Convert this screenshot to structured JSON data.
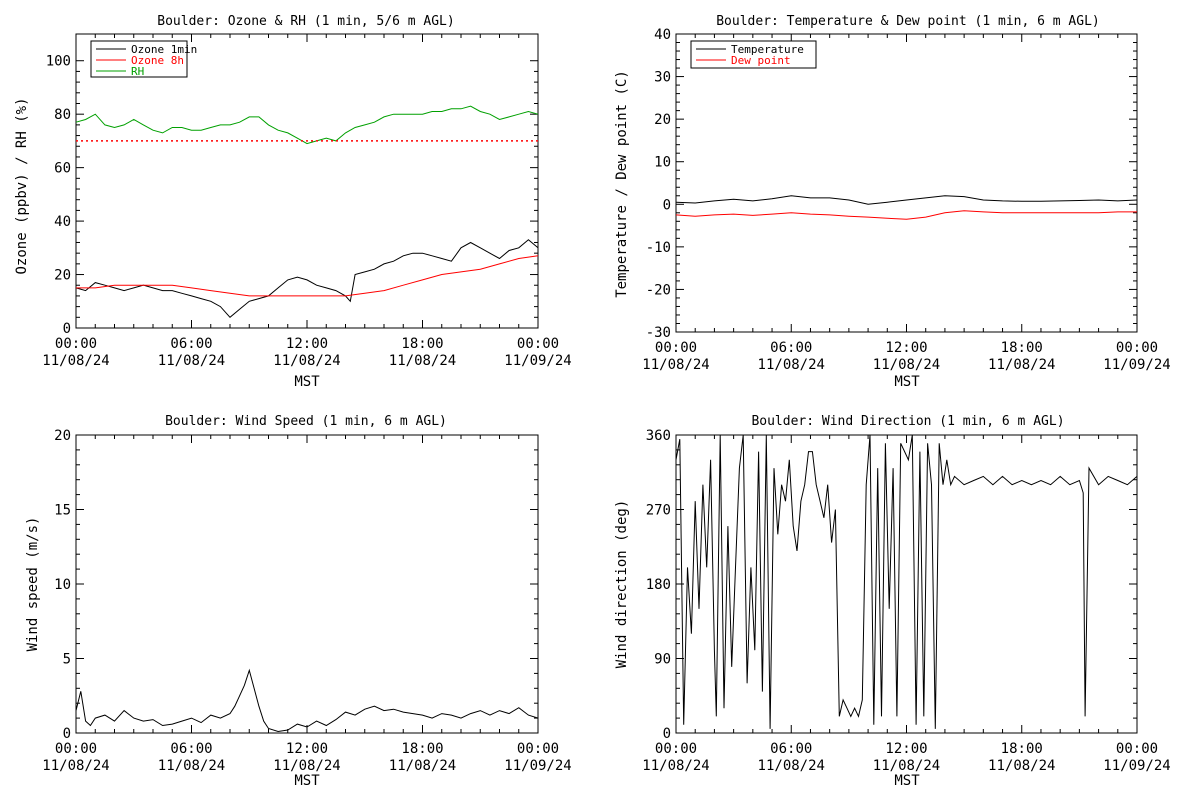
{
  "chart_data": [
    {
      "id": "ozone_rh",
      "type": "line",
      "title": "Boulder: Ozone & RH (1 min, 5/6 m AGL)",
      "ylabel": "Ozone (ppbv) / RH (%)",
      "xlabel": "MST",
      "xlim_hours": [
        0,
        24
      ],
      "ylim": [
        0,
        110
      ],
      "yticks": [
        0,
        20,
        40,
        60,
        80,
        100
      ],
      "x_tick_labels": [
        [
          "00:00",
          "11/08/24"
        ],
        [
          "06:00",
          "11/08/24"
        ],
        [
          "12:00",
          "11/08/24"
        ],
        [
          "18:00",
          "11/08/24"
        ],
        [
          "00:00",
          "11/09/24"
        ]
      ],
      "grid": false,
      "legend": "top-left",
      "series": [
        {
          "name": "Ozone 1min",
          "color": "#000000",
          "x": [
            0,
            0.5,
            1,
            1.5,
            2,
            2.5,
            3,
            3.5,
            4,
            4.5,
            5,
            5.5,
            6,
            6.5,
            7,
            7.5,
            8,
            8.5,
            9,
            9.5,
            10,
            10.5,
            11,
            11.5,
            12,
            12.5,
            13,
            13.5,
            14,
            14.25,
            14.5,
            15,
            15.5,
            16,
            16.5,
            17,
            17.5,
            18,
            18.5,
            19,
            19.5,
            20,
            20.5,
            21,
            21.5,
            22,
            22.5,
            23,
            23.5,
            24
          ],
          "y": [
            15,
            14,
            17,
            16,
            15,
            14,
            15,
            16,
            15,
            14,
            14,
            13,
            12,
            11,
            10,
            8,
            4,
            7,
            10,
            11,
            12,
            15,
            18,
            19,
            18,
            16,
            15,
            14,
            12,
            10,
            20,
            21,
            22,
            24,
            25,
            27,
            28,
            28,
            27,
            26,
            25,
            30,
            32,
            30,
            28,
            26,
            29,
            30,
            33,
            30
          ]
        },
        {
          "name": "Ozone 8h",
          "color": "#ff0000",
          "x": [
            0,
            1,
            2,
            3,
            4,
            5,
            6,
            7,
            8,
            9,
            10,
            11,
            12,
            13,
            14,
            15,
            16,
            17,
            18,
            19,
            20,
            21,
            22,
            23,
            24
          ],
          "y": [
            15,
            15,
            16,
            16,
            16,
            16,
            15,
            14,
            13,
            12,
            12,
            12,
            12,
            12,
            12,
            13,
            14,
            16,
            18,
            20,
            21,
            22,
            24,
            26,
            27
          ]
        },
        {
          "name": "RH",
          "color": "#00a000",
          "x": [
            0,
            0.5,
            1,
            1.5,
            2,
            2.5,
            3,
            3.5,
            4,
            4.5,
            5,
            5.5,
            6,
            6.5,
            7,
            7.5,
            8,
            8.5,
            9,
            9.5,
            10,
            10.5,
            11,
            11.5,
            12,
            12.5,
            13,
            13.5,
            14,
            14.5,
            15,
            15.5,
            16,
            16.5,
            17,
            17.5,
            18,
            18.5,
            19,
            19.5,
            20,
            20.5,
            21,
            21.5,
            22,
            22.5,
            23,
            23.5,
            24
          ],
          "y": [
            77,
            78,
            80,
            76,
            75,
            76,
            78,
            76,
            74,
            73,
            75,
            75,
            74,
            74,
            75,
            76,
            76,
            77,
            79,
            79,
            76,
            74,
            73,
            71,
            69,
            70,
            71,
            70,
            73,
            75,
            76,
            77,
            79,
            80,
            80,
            80,
            80,
            81,
            81,
            82,
            82,
            83,
            81,
            80,
            78,
            79,
            80,
            81,
            80
          ]
        },
        {
          "name": "",
          "color": "#ff0000",
          "dashed": true,
          "x": [
            0,
            24
          ],
          "y": [
            70,
            70
          ]
        }
      ]
    },
    {
      "id": "temp_dew",
      "type": "line",
      "title": "Boulder: Temperature & Dew point (1 min, 6 m AGL)",
      "ylabel": "Temperature / Dew point (C)",
      "xlabel": "MST",
      "xlim_hours": [
        0,
        24
      ],
      "ylim": [
        -30,
        40
      ],
      "yticks": [
        -30,
        -20,
        -10,
        0,
        10,
        20,
        30,
        40
      ],
      "x_tick_labels": [
        [
          "00:00",
          "11/08/24"
        ],
        [
          "06:00",
          "11/08/24"
        ],
        [
          "12:00",
          "11/08/24"
        ],
        [
          "18:00",
          "11/08/24"
        ],
        [
          "00:00",
          "11/09/24"
        ]
      ],
      "grid": false,
      "legend": "top-left",
      "series": [
        {
          "name": "Temperature",
          "color": "#000000",
          "x": [
            0,
            1,
            2,
            3,
            4,
            5,
            6,
            7,
            8,
            9,
            10,
            11,
            12,
            13,
            14,
            15,
            16,
            17,
            18,
            19,
            20,
            21,
            22,
            23,
            24
          ],
          "y": [
            0.5,
            0.3,
            0.8,
            1.2,
            0.8,
            1.3,
            2.0,
            1.5,
            1.5,
            1.0,
            0.0,
            0.5,
            1.0,
            1.5,
            2.0,
            1.8,
            1.0,
            0.8,
            0.7,
            0.7,
            0.8,
            0.9,
            1.0,
            0.8,
            1.0
          ]
        },
        {
          "name": "Dew point",
          "color": "#ff0000",
          "x": [
            0,
            1,
            2,
            3,
            4,
            5,
            6,
            7,
            8,
            9,
            10,
            11,
            12,
            13,
            14,
            15,
            16,
            17,
            18,
            19,
            20,
            21,
            22,
            23,
            24
          ],
          "y": [
            -2.5,
            -2.8,
            -2.5,
            -2.3,
            -2.6,
            -2.3,
            -2.0,
            -2.3,
            -2.5,
            -2.8,
            -3.0,
            -3.3,
            -3.5,
            -3.0,
            -2.0,
            -1.5,
            -1.8,
            -2.0,
            -2.0,
            -2.0,
            -2.0,
            -2.0,
            -2.0,
            -1.8,
            -1.8
          ]
        }
      ]
    },
    {
      "id": "wind_speed",
      "type": "line",
      "title": "Boulder: Wind Speed (1 min, 6 m AGL)",
      "ylabel": "Wind speed (m/s)",
      "xlabel": "MST",
      "xlim_hours": [
        0,
        24
      ],
      "ylim": [
        0,
        20
      ],
      "yticks": [
        0,
        5,
        10,
        15,
        20
      ],
      "x_tick_labels": [
        [
          "00:00",
          "11/08/24"
        ],
        [
          "06:00",
          "11/08/24"
        ],
        [
          "12:00",
          "11/08/24"
        ],
        [
          "18:00",
          "11/08/24"
        ],
        [
          "00:00",
          "11/09/24"
        ]
      ],
      "grid": false,
      "legend": "none",
      "series": [
        {
          "name": "",
          "color": "#000000",
          "x": [
            0,
            0.25,
            0.5,
            0.75,
            1,
            1.5,
            2,
            2.5,
            3,
            3.5,
            4,
            4.5,
            5,
            5.5,
            6,
            6.5,
            7,
            7.5,
            8,
            8.25,
            8.5,
            8.75,
            9,
            9.25,
            9.5,
            9.75,
            10,
            10.5,
            11,
            11.5,
            12,
            12.5,
            13,
            13.5,
            14,
            14.5,
            15,
            15.5,
            16,
            16.5,
            17,
            17.5,
            18,
            18.5,
            19,
            19.5,
            20,
            20.5,
            21,
            21.5,
            22,
            22.5,
            23,
            23.5,
            24
          ],
          "y": [
            1.5,
            2.8,
            0.8,
            0.5,
            1.0,
            1.2,
            0.8,
            1.5,
            1.0,
            0.8,
            0.9,
            0.5,
            0.6,
            0.8,
            1.0,
            0.7,
            1.2,
            1.0,
            1.3,
            1.8,
            2.5,
            3.2,
            4.2,
            3.0,
            1.8,
            0.8,
            0.3,
            0.1,
            0.2,
            0.6,
            0.4,
            0.8,
            0.5,
            0.9,
            1.4,
            1.2,
            1.6,
            1.8,
            1.5,
            1.6,
            1.4,
            1.3,
            1.2,
            1.0,
            1.3,
            1.2,
            1.0,
            1.3,
            1.5,
            1.2,
            1.5,
            1.3,
            1.7,
            1.2,
            1.0
          ]
        }
      ]
    },
    {
      "id": "wind_dir",
      "type": "line",
      "title": "Boulder: Wind Direction (1 min, 6 m AGL)",
      "ylabel": "Wind direction (deg)",
      "xlabel": "MST",
      "xlim_hours": [
        0,
        24
      ],
      "ylim": [
        0,
        360
      ],
      "yticks": [
        0,
        90,
        180,
        270,
        360
      ],
      "x_tick_labels": [
        [
          "00:00",
          "11/08/24"
        ],
        [
          "06:00",
          "11/08/24"
        ],
        [
          "12:00",
          "11/08/24"
        ],
        [
          "18:00",
          "11/08/24"
        ],
        [
          "00:00",
          "11/09/24"
        ]
      ],
      "grid": false,
      "legend": "none",
      "series": [
        {
          "name": "",
          "color": "#000000",
          "x": [
            0,
            0.2,
            0.4,
            0.6,
            0.8,
            1.0,
            1.2,
            1.4,
            1.6,
            1.8,
            2.0,
            2.1,
            2.3,
            2.5,
            2.7,
            2.9,
            3.1,
            3.3,
            3.5,
            3.7,
            3.9,
            4.1,
            4.3,
            4.5,
            4.7,
            4.9,
            5.1,
            5.3,
            5.5,
            5.7,
            5.9,
            6.1,
            6.3,
            6.5,
            6.7,
            6.9,
            7.1,
            7.3,
            7.5,
            7.7,
            7.9,
            8.1,
            8.3,
            8.5,
            8.7,
            8.9,
            9.1,
            9.3,
            9.5,
            9.7,
            9.9,
            10.1,
            10.3,
            10.5,
            10.7,
            10.9,
            11.1,
            11.3,
            11.5,
            11.7,
            11.9,
            12.1,
            12.3,
            12.5,
            12.7,
            12.9,
            13.1,
            13.3,
            13.5,
            13.7,
            13.9,
            14.1,
            14.3,
            14.5,
            15,
            15.5,
            16,
            16.5,
            17,
            17.5,
            18,
            18.5,
            19,
            19.5,
            20,
            20.5,
            21,
            21.2,
            21.3,
            21.5,
            22,
            22.5,
            23,
            23.5,
            24
          ],
          "y": [
            330,
            355,
            10,
            200,
            120,
            280,
            150,
            300,
            200,
            330,
            100,
            20,
            360,
            30,
            250,
            80,
            200,
            320,
            360,
            60,
            200,
            100,
            340,
            50,
            360,
            5,
            320,
            240,
            300,
            280,
            330,
            250,
            220,
            280,
            300,
            340,
            340,
            300,
            280,
            260,
            300,
            230,
            270,
            20,
            40,
            30,
            20,
            30,
            20,
            40,
            300,
            360,
            10,
            320,
            20,
            350,
            150,
            320,
            20,
            350,
            340,
            330,
            360,
            10,
            340,
            20,
            350,
            300,
            5,
            350,
            300,
            330,
            300,
            310,
            300,
            305,
            310,
            300,
            310,
            300,
            305,
            300,
            305,
            300,
            310,
            300,
            305,
            290,
            20,
            320,
            300,
            310,
            305,
            300,
            310
          ]
        }
      ]
    }
  ]
}
